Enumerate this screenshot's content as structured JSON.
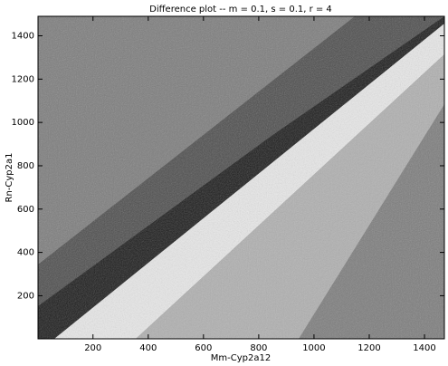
{
  "chart_data": {
    "type": "image",
    "title": "Difference plot -- m = 0.1, s = 0.1, r = 4",
    "x_label": "Mm-Cyp2a12",
    "y_label": "Rn-Cyp2a1",
    "xlim": [
      1,
      1472
    ],
    "ylim": [
      1,
      1490
    ],
    "xticks": [
      200,
      400,
      600,
      800,
      1000,
      1200,
      1400
    ],
    "yticks": [
      200,
      400,
      600,
      800,
      1000,
      1200,
      1400
    ]
  }
}
